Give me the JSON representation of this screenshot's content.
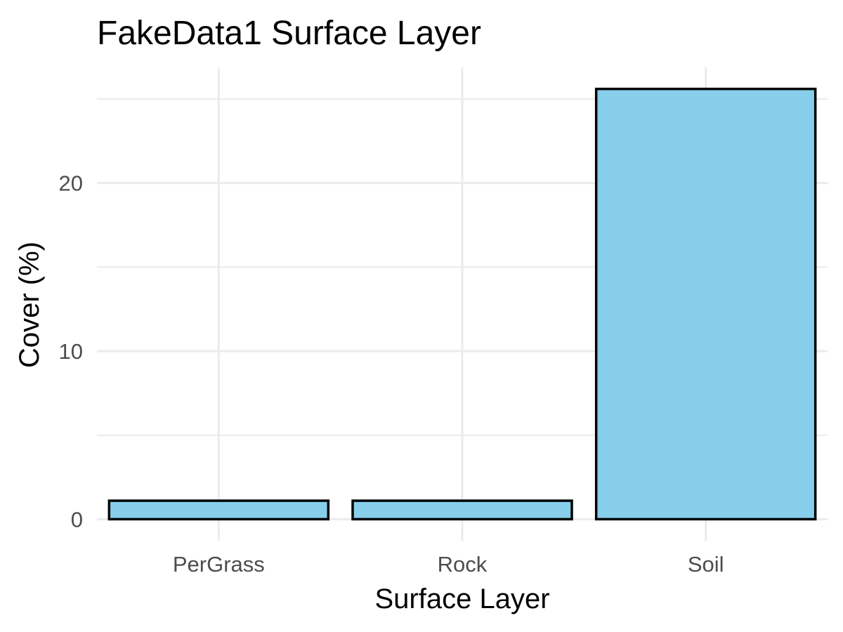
{
  "chart_data": {
    "type": "bar",
    "title": "FakeData1 Surface Layer",
    "xlabel": "Surface Layer",
    "ylabel": "Cover (%)",
    "categories": [
      "PerGrass",
      "Rock",
      "Soil"
    ],
    "values": [
      1.1,
      1.1,
      25.6
    ],
    "ylim": [
      -1.28,
      26.88
    ],
    "y_ticks": [
      0,
      10,
      20
    ],
    "grid": true,
    "legend": "none",
    "colors": {
      "bar_fill": "#87CEEB",
      "bar_stroke": "#000000",
      "grid": "#ebebeb",
      "background": "#ffffff"
    }
  }
}
